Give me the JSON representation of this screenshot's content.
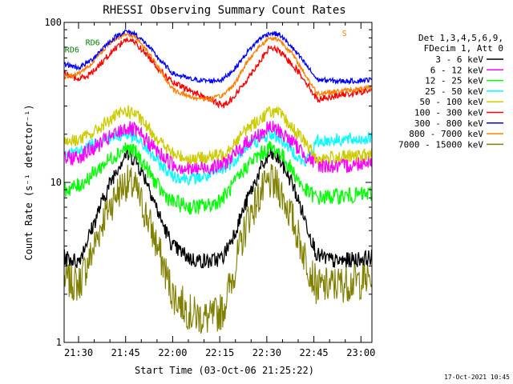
{
  "chart_data": {
    "type": "line",
    "title": "RHESSI Observing Summary Count Rates",
    "xlabel": "Start Time (03-Oct-06 21:25:22)",
    "ylabel": "Count Rate (s⁻¹ detector⁻¹)",
    "footer_date": "17-Oct-2021 10:45",
    "y_scale": "log",
    "ylim": [
      1,
      100
    ],
    "xlim_minutes": [
      1285.4,
      1383.5
    ],
    "x_ticks": [
      {
        "label": "21:30",
        "minute": 1290
      },
      {
        "label": "21:45",
        "minute": 1305
      },
      {
        "label": "22:00",
        "minute": 1320
      },
      {
        "label": "22:15",
        "minute": 1335
      },
      {
        "label": "22:30",
        "minute": 1350
      },
      {
        "label": "22:45",
        "minute": 1365
      },
      {
        "label": "23:00",
        "minute": 1380
      }
    ],
    "y_ticks": [
      {
        "label": "1",
        "value": 1
      },
      {
        "label": "10",
        "value": 10
      },
      {
        "label": "100",
        "value": 100
      }
    ],
    "legend_header": [
      "Det 1,3,4,5,6,9,",
      "FDecim 1, Att 0"
    ],
    "legend_position": "right",
    "series": [
      {
        "name": "3 - 6 keV",
        "color": "#000000",
        "x": [
          1285.5,
          1290,
          1294,
          1298,
          1302,
          1305,
          1308,
          1312,
          1316,
          1320,
          1326,
          1332,
          1336,
          1340,
          1344,
          1348,
          1351,
          1354,
          1358,
          1362,
          1366,
          1372,
          1378,
          1383.5
        ],
        "y": [
          3.4,
          3.2,
          5,
          8,
          12,
          15,
          14,
          10,
          6,
          4,
          3.3,
          3.2,
          3.4,
          5,
          8,
          12,
          15,
          14,
          10,
          6,
          3.5,
          3.2,
          3.3,
          3.4
        ]
      },
      {
        "name": "6 - 12 keV",
        "color": "#ff00ff",
        "x": [
          1285.5,
          1290,
          1294,
          1298,
          1302,
          1305,
          1308,
          1312,
          1316,
          1320,
          1326,
          1332,
          1336,
          1340,
          1344,
          1348,
          1351,
          1354,
          1358,
          1362,
          1366,
          1372,
          1378,
          1383.5
        ],
        "y": [
          14,
          14.5,
          16,
          18,
          20,
          22,
          21,
          18,
          15,
          13,
          12,
          12.5,
          13,
          15,
          18,
          20,
          22,
          21,
          18,
          15,
          13,
          12.5,
          13,
          14
        ]
      },
      {
        "name": "12 - 25 keV",
        "color": "#00ff00",
        "x": [
          1285.5,
          1290,
          1294,
          1298,
          1302,
          1305,
          1308,
          1312,
          1316,
          1320,
          1326,
          1332,
          1336,
          1340,
          1344,
          1348,
          1351,
          1354,
          1358,
          1362,
          1366,
          1372,
          1378,
          1383.5
        ],
        "y": [
          9,
          9.5,
          11,
          13,
          15,
          16.5,
          15.5,
          12,
          9,
          7.5,
          7,
          7.2,
          8,
          10,
          13,
          15,
          16.5,
          15.5,
          12,
          9,
          8,
          8.2,
          8.3,
          8.5
        ]
      },
      {
        "name": "25 - 50 keV",
        "color": "#00ffff",
        "x": [
          1285.5,
          1290,
          1294,
          1298,
          1302,
          1305,
          1308,
          1312,
          1316,
          1320,
          1326,
          1332,
          1336,
          1340,
          1344,
          1348,
          1351,
          1354,
          1358,
          1362,
          1366,
          1372,
          1378,
          1383.5
        ],
        "y": [
          15,
          15.5,
          17,
          18.5,
          19.5,
          20,
          19,
          16,
          13,
          11,
          10.5,
          11,
          12,
          14,
          17,
          18.5,
          20,
          19,
          16,
          13,
          18,
          18.5,
          18.5,
          19
        ]
      },
      {
        "name": "50 - 100 keV",
        "color": "#cccc00",
        "x": [
          1285.5,
          1290,
          1294,
          1298,
          1302,
          1305,
          1308,
          1312,
          1316,
          1320,
          1326,
          1332,
          1336,
          1340,
          1344,
          1348,
          1351,
          1354,
          1358,
          1362,
          1366,
          1372,
          1378,
          1383.5
        ],
        "y": [
          18,
          18.5,
          20,
          23,
          26,
          28,
          27,
          22,
          18,
          15,
          14,
          14.5,
          15,
          18,
          22,
          25,
          28,
          27,
          22,
          18,
          14,
          14.5,
          14.5,
          15
        ]
      },
      {
        "name": "100 - 300 keV",
        "color": "#ff0000",
        "x": [
          1285.5,
          1290,
          1294,
          1298,
          1302,
          1305,
          1308,
          1312,
          1316,
          1320,
          1326,
          1332,
          1336,
          1340,
          1344,
          1348,
          1351,
          1354,
          1358,
          1362,
          1366,
          1372,
          1378,
          1383.5
        ],
        "y": [
          48,
          44,
          48,
          58,
          70,
          78,
          75,
          62,
          50,
          42,
          37,
          33,
          30,
          35,
          45,
          58,
          70,
          66,
          55,
          44,
          33,
          35,
          36,
          38
        ]
      },
      {
        "name": "300 - 800 keV",
        "color": "#0000ff",
        "x": [
          1285.5,
          1290,
          1294,
          1298,
          1302,
          1305,
          1308,
          1312,
          1316,
          1320,
          1326,
          1332,
          1336,
          1340,
          1344,
          1348,
          1351,
          1354,
          1358,
          1362,
          1366,
          1372,
          1378,
          1383.5
        ],
        "y": [
          55,
          52,
          58,
          70,
          82,
          88,
          85,
          72,
          58,
          48,
          44,
          43,
          44,
          52,
          66,
          80,
          86,
          84,
          70,
          56,
          44,
          43,
          43,
          44
        ]
      },
      {
        "name": "800 - 7000 keV",
        "color": "#ff8000",
        "x": [
          1285.5,
          1290,
          1294,
          1298,
          1302,
          1305,
          1308,
          1312,
          1316,
          1320,
          1326,
          1332,
          1336,
          1340,
          1344,
          1348,
          1351,
          1354,
          1358,
          1362,
          1366,
          1372,
          1378,
          1383.5
        ],
        "y": [
          45,
          48,
          55,
          68,
          80,
          84,
          82,
          66,
          50,
          38,
          34,
          33,
          35,
          42,
          58,
          72,
          80,
          78,
          64,
          48,
          36,
          37,
          38,
          39
        ]
      },
      {
        "name": "7000 - 15000 keV",
        "color": "#808000",
        "x": [
          1285.5,
          1290,
          1294,
          1298,
          1302,
          1305,
          1308,
          1312,
          1316,
          1320,
          1326,
          1332,
          1336,
          1340,
          1344,
          1348,
          1351,
          1354,
          1358,
          1362,
          1366,
          1372,
          1378,
          1383.5
        ],
        "y": [
          2.5,
          2.3,
          3.5,
          6,
          8.5,
          10,
          9.2,
          6,
          3.5,
          2,
          1.5,
          1.4,
          1.6,
          3,
          6,
          8.5,
          10,
          9.2,
          6,
          3.5,
          2.2,
          2.3,
          2.4,
          2.5
        ]
      }
    ],
    "annotations": [
      {
        "text": "RD6",
        "minute": 1285.6,
        "value": 65,
        "color": "#008000"
      },
      {
        "text": "RD6",
        "minute": 1292.2,
        "value": 72,
        "color": "#008000"
      },
      {
        "text": "S",
        "minute": 1374,
        "value": 82,
        "color": "#ff8000"
      }
    ]
  }
}
